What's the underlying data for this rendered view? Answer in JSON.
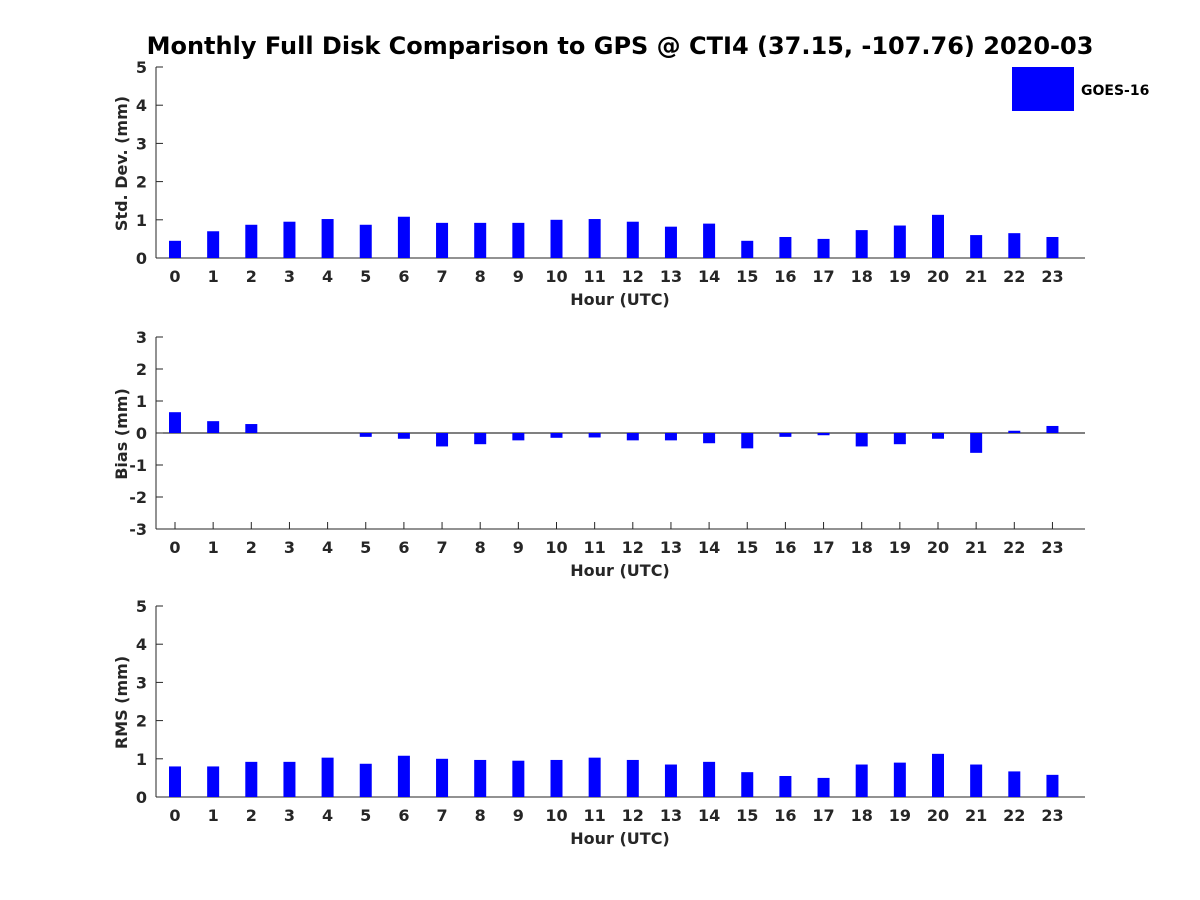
{
  "title": "Monthly Full Disk Comparison to GPS @ CTI4 (37.15, -107.76) 2020-03",
  "legend": {
    "label": "GOES-16",
    "color": "#0000ff"
  },
  "chart_data": [
    {
      "type": "bar",
      "id": "stddev",
      "ylabel": "Std. Dev. (mm)",
      "xlabel": "Hour (UTC)",
      "ylim": [
        0,
        5
      ],
      "yticks": [
        0,
        1,
        2,
        3,
        4,
        5
      ],
      "categories": [
        "0",
        "1",
        "2",
        "3",
        "4",
        "5",
        "6",
        "7",
        "8",
        "9",
        "10",
        "11",
        "12",
        "13",
        "14",
        "15",
        "16",
        "17",
        "18",
        "19",
        "20",
        "21",
        "22",
        "23"
      ],
      "series": [
        {
          "name": "GOES-16",
          "color": "#0000ff",
          "values": [
            0.45,
            0.7,
            0.87,
            0.95,
            1.02,
            0.87,
            1.08,
            0.92,
            0.92,
            0.92,
            1.0,
            1.02,
            0.95,
            0.82,
            0.9,
            0.45,
            0.55,
            0.5,
            0.73,
            0.85,
            1.13,
            0.6,
            0.65,
            0.55
          ]
        }
      ]
    },
    {
      "type": "bar",
      "id": "bias",
      "ylabel": "Bias (mm)",
      "xlabel": "Hour (UTC)",
      "ylim": [
        -3,
        3
      ],
      "yticks": [
        -3,
        -2,
        -1,
        0,
        1,
        2,
        3
      ],
      "categories": [
        "0",
        "1",
        "2",
        "3",
        "4",
        "5",
        "6",
        "7",
        "8",
        "9",
        "10",
        "11",
        "12",
        "13",
        "14",
        "15",
        "16",
        "17",
        "18",
        "19",
        "20",
        "21",
        "22",
        "23"
      ],
      "series": [
        {
          "name": "GOES-16",
          "color": "#0000ff",
          "values": [
            0.65,
            0.37,
            0.28,
            0.0,
            0.0,
            -0.12,
            -0.18,
            -0.42,
            -0.35,
            -0.23,
            -0.15,
            -0.14,
            -0.23,
            -0.23,
            -0.32,
            -0.48,
            -0.12,
            -0.07,
            -0.42,
            -0.35,
            -0.18,
            -0.62,
            0.07,
            0.22
          ]
        }
      ]
    },
    {
      "type": "bar",
      "id": "rms",
      "ylabel": "RMS (mm)",
      "xlabel": "Hour (UTC)",
      "ylim": [
        0,
        5
      ],
      "yticks": [
        0,
        1,
        2,
        3,
        4,
        5
      ],
      "categories": [
        "0",
        "1",
        "2",
        "3",
        "4",
        "5",
        "6",
        "7",
        "8",
        "9",
        "10",
        "11",
        "12",
        "13",
        "14",
        "15",
        "16",
        "17",
        "18",
        "19",
        "20",
        "21",
        "22",
        "23"
      ],
      "series": [
        {
          "name": "GOES-16",
          "color": "#0000ff",
          "values": [
            0.8,
            0.8,
            0.92,
            0.92,
            1.03,
            0.87,
            1.08,
            1.0,
            0.97,
            0.95,
            0.97,
            1.03,
            0.97,
            0.85,
            0.92,
            0.65,
            0.55,
            0.5,
            0.85,
            0.9,
            1.13,
            0.85,
            0.67,
            0.58
          ]
        }
      ]
    }
  ]
}
